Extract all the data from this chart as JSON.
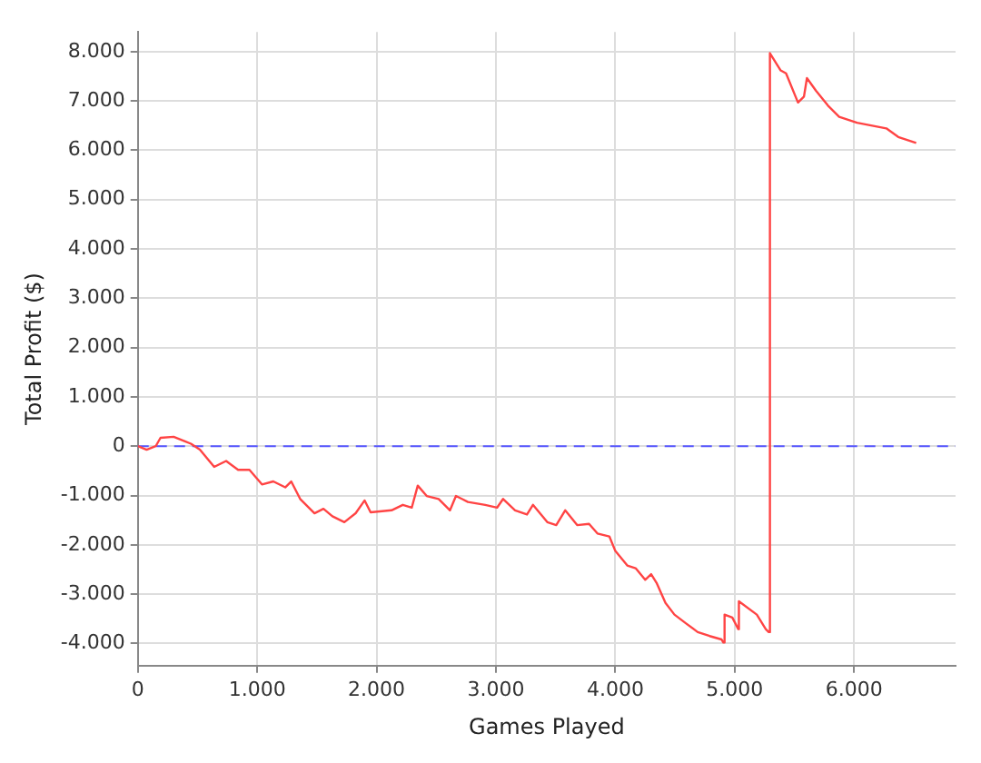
{
  "chart_data": {
    "type": "line",
    "xlabel": "Games Played",
    "ylabel": "Total Profit ($)",
    "xlim": [
      0,
      6850
    ],
    "ylim": [
      -4450,
      8400
    ],
    "xticks": [
      0,
      {
        "value": 1000,
        "label": "1.000"
      },
      {
        "value": 2000,
        "label": "2.000"
      },
      {
        "value": 3000,
        "label": "3.000"
      },
      {
        "value": 4000,
        "label": "4.000"
      },
      {
        "value": 5000,
        "label": "5.000"
      },
      {
        "value": 6000,
        "label": "6.000"
      }
    ],
    "yticks": [
      {
        "value": -4000,
        "label": "-4.000"
      },
      {
        "value": -3000,
        "label": "-3.000"
      },
      {
        "value": -2000,
        "label": "-2.000"
      },
      {
        "value": -1000,
        "label": "-1.000"
      },
      0,
      {
        "value": 1000,
        "label": "1.000"
      },
      {
        "value": 2000,
        "label": "2.000"
      },
      {
        "value": 3000,
        "label": "3.000"
      },
      {
        "value": 4000,
        "label": "4.000"
      },
      {
        "value": 5000,
        "label": "5.000"
      },
      {
        "value": 6000,
        "label": "6.000"
      },
      {
        "value": 7000,
        "label": "7.000"
      },
      {
        "value": 8000,
        "label": "8.000"
      }
    ],
    "grid": true,
    "legend": false,
    "marker": "none",
    "line_style": "solid",
    "ref_lines": [
      {
        "axis": "y",
        "value": 0,
        "color": "#5555ff",
        "line_style": "dashed"
      }
    ],
    "series": [
      {
        "color": "#ff4444",
        "x": [
          0,
          74,
          150,
          190,
          300,
          395,
          445,
          520,
          640,
          740,
          840,
          935,
          1040,
          1135,
          1235,
          1285,
          1360,
          1480,
          1555,
          1630,
          1730,
          1825,
          1900,
          1950,
          2125,
          2220,
          2295,
          2345,
          2420,
          2520,
          2615,
          2665,
          2765,
          2910,
          3010,
          3060,
          3160,
          3260,
          3310,
          3430,
          3505,
          3580,
          3680,
          3780,
          3850,
          3950,
          4000,
          4100,
          4170,
          4250,
          4300,
          4345,
          4420,
          4495,
          4590,
          4690,
          4790,
          4890,
          4905,
          4915,
          4980,
          5030,
          5035,
          5185,
          5260,
          5285,
          5295,
          5385,
          5430,
          5530,
          5580,
          5605,
          5680,
          5780,
          5875,
          6025,
          6270,
          6370,
          6520
        ],
        "values": [
          0,
          -70,
          0,
          170,
          190,
          100,
          50,
          -70,
          -420,
          -300,
          -480,
          -480,
          -775,
          -715,
          -835,
          -715,
          -1070,
          -1360,
          -1270,
          -1420,
          -1540,
          -1360,
          -1100,
          -1340,
          -1300,
          -1190,
          -1245,
          -800,
          -1010,
          -1070,
          -1300,
          -1010,
          -1130,
          -1190,
          -1245,
          -1070,
          -1300,
          -1385,
          -1190,
          -1540,
          -1600,
          -1300,
          -1600,
          -1575,
          -1770,
          -1830,
          -2125,
          -2420,
          -2475,
          -2710,
          -2595,
          -2770,
          -3180,
          -3415,
          -3590,
          -3770,
          -3850,
          -3920,
          -3980,
          -3415,
          -3475,
          -3710,
          -3145,
          -3415,
          -3710,
          -3770,
          7970,
          7620,
          7560,
          6970,
          7090,
          7465,
          7210,
          6910,
          6680,
          6560,
          6445,
          6270,
          6150
        ]
      }
    ]
  }
}
